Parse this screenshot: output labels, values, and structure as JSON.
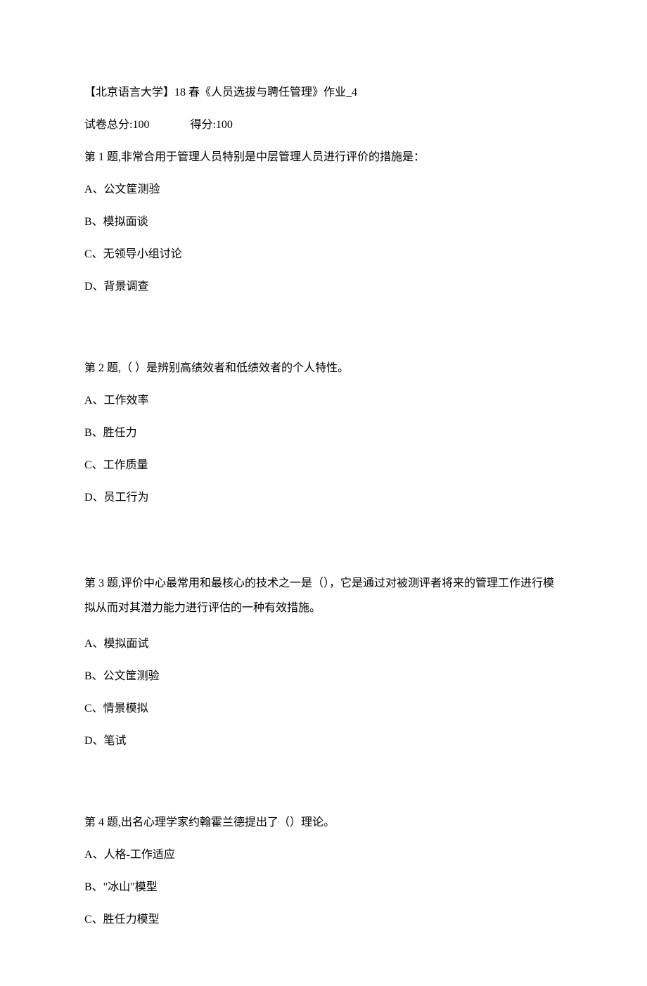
{
  "header": {
    "title": "【北京语言大学】18 春《人员选拔与聘任管理》作业_4",
    "total_label": "试卷总分:100",
    "score_label": "得分:100"
  },
  "q1": {
    "prompt": "第 1 题,非常合用于管理人员特别是中层管理人员进行评价的措施是：",
    "a": "A、公文筐测验",
    "b": "B、模拟面谈",
    "c": "C、无领导小组讨论",
    "d": "D、背景调查"
  },
  "q2": {
    "prompt": "第 2 题,（  ）是辨别高绩效者和低绩效者的个人特性。",
    "a": "A、工作效率",
    "b": "B、胜任力",
    "c": "C、工作质量",
    "d": "D、员工行为"
  },
  "q3": {
    "prompt": "第 3 题,评价中心最常用和最核心的技术之一是（），它是通过对被测评者将来的管理工作进行模拟从而对其潜力能力进行评估的一种有效措施。",
    "a": "A、模拟面试",
    "b": "B、公文筐测验",
    "c": "C、情景模拟",
    "d": "D、笔试"
  },
  "q4": {
    "prompt": "第 4 题,出名心理学家约翰霍兰德提出了（）理论。",
    "a": "A、人格-工作适应",
    "b": "B、\"冰山\"模型",
    "c": "C、胜任力模型"
  }
}
